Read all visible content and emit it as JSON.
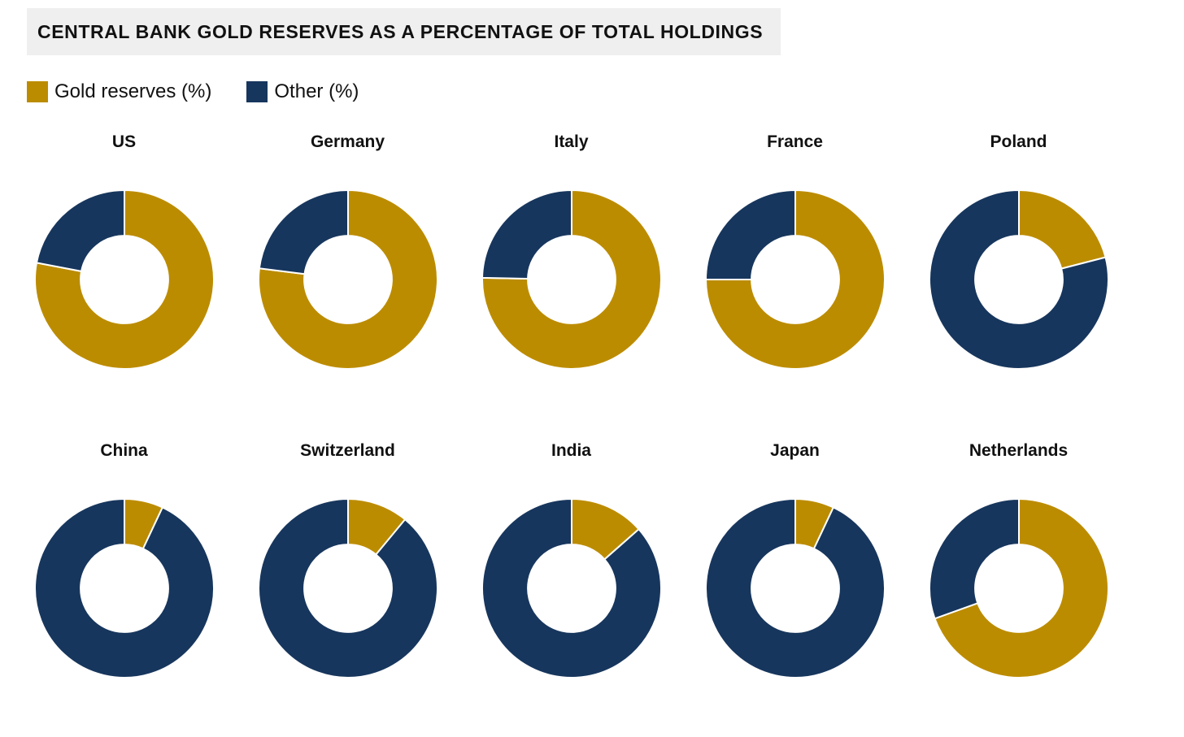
{
  "title": "CENTRAL BANK GOLD RESERVES AS A PERCENTAGE OF TOTAL HOLDINGS",
  "legend": [
    {
      "label": "Gold reserves (%)",
      "color": "#BC8C00",
      "key": "gold"
    },
    {
      "label": "Other (%)",
      "color": "#17365D",
      "key": "other"
    }
  ],
  "colors": {
    "gold": "#BC8C00",
    "navy": "#17365D",
    "title_background": "#efefef",
    "slice_separator": "#ffffff"
  },
  "chart_layout": {
    "rows": 2,
    "cols": 5,
    "donut_hole_ratio": 0.49,
    "start_angle_deg": 0,
    "direction": "clockwise",
    "legend_position": "top-left"
  },
  "chart_data": [
    {
      "type": "pie",
      "title": "US",
      "labels": [
        "Gold reserves (%)",
        "Other (%)"
      ],
      "values": [
        78,
        22
      ]
    },
    {
      "type": "pie",
      "title": "Germany",
      "labels": [
        "Gold reserves (%)",
        "Other (%)"
      ],
      "values": [
        77,
        23
      ]
    },
    {
      "type": "pie",
      "title": "Italy",
      "labels": [
        "Gold reserves (%)",
        "Other (%)"
      ],
      "values": [
        75.3,
        24.7
      ]
    },
    {
      "type": "pie",
      "title": "France",
      "labels": [
        "Gold reserves (%)",
        "Other (%)"
      ],
      "values": [
        75,
        25
      ]
    },
    {
      "type": "pie",
      "title": "Poland",
      "labels": [
        "Gold reserves (%)",
        "Other (%)"
      ],
      "values": [
        21,
        79
      ]
    },
    {
      "type": "pie",
      "title": "China",
      "labels": [
        "Gold reserves (%)",
        "Other (%)"
      ],
      "values": [
        7,
        93
      ]
    },
    {
      "type": "pie",
      "title": "Switzerland",
      "labels": [
        "Gold reserves (%)",
        "Other (%)"
      ],
      "values": [
        11,
        89
      ]
    },
    {
      "type": "pie",
      "title": "India",
      "labels": [
        "Gold reserves (%)",
        "Other (%)"
      ],
      "values": [
        13.5,
        86.5
      ]
    },
    {
      "type": "pie",
      "title": "Japan",
      "labels": [
        "Gold reserves (%)",
        "Other (%)"
      ],
      "values": [
        7,
        93
      ]
    },
    {
      "type": "pie",
      "title": "Netherlands",
      "labels": [
        "Gold reserves (%)",
        "Other (%)"
      ],
      "values": [
        69.5,
        30.5
      ]
    }
  ]
}
